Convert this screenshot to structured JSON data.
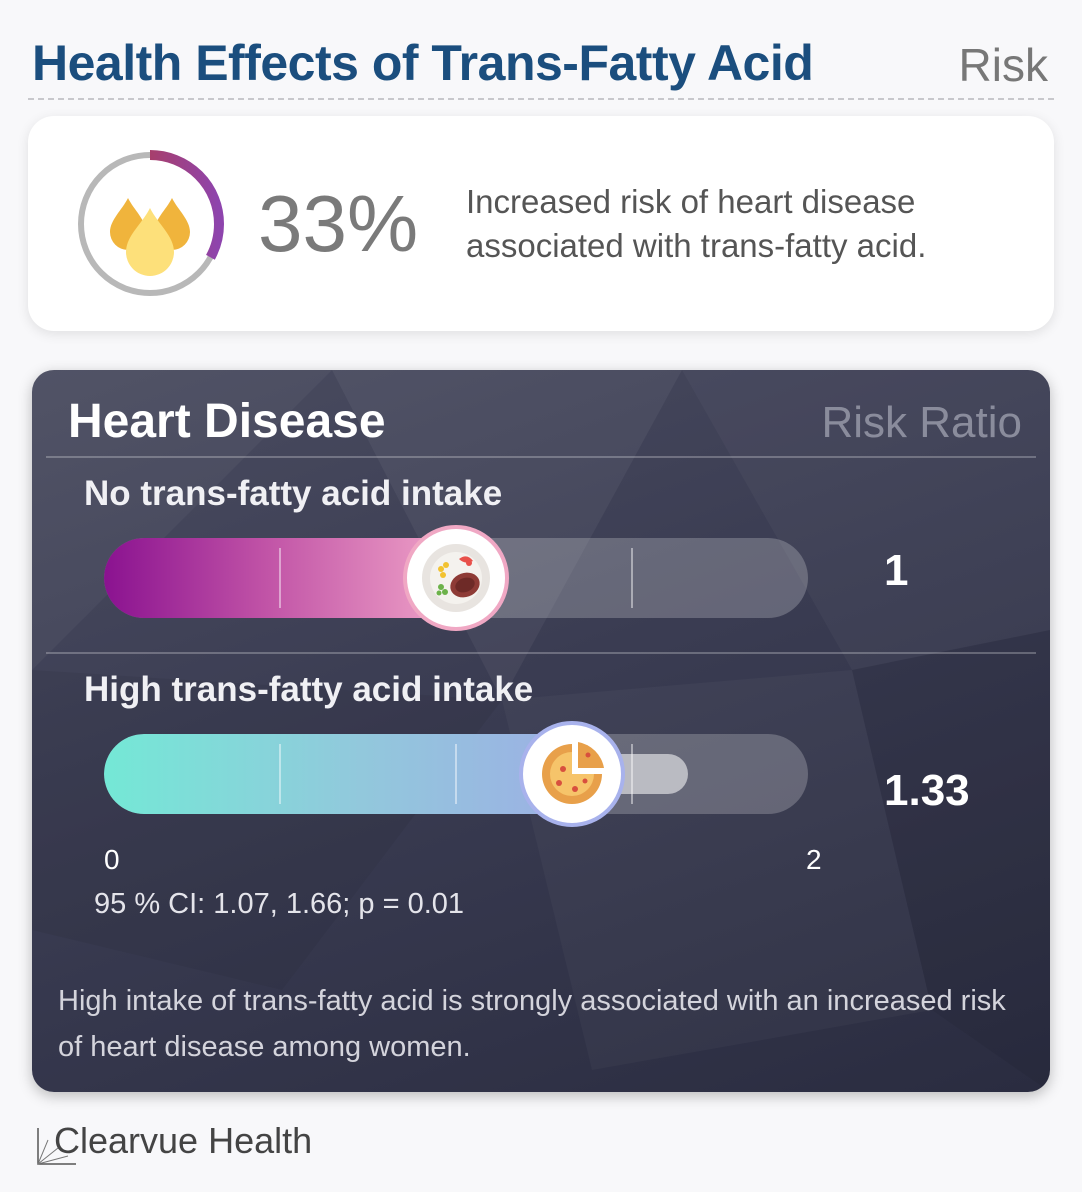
{
  "header": {
    "title": "Health Effects of Trans-Fatty Acid",
    "category": "Risk"
  },
  "stat": {
    "value": "33%",
    "fraction": 0.33,
    "description": "Increased risk of heart disease associated with trans-fatty acid.",
    "icon": "oil-drops-icon"
  },
  "panel": {
    "title": "Heart Disease",
    "metric": "Risk Ratio",
    "rows": [
      {
        "label": "No trans-fatty acid intake",
        "value": "1",
        "ratio": 1,
        "icon": "food-plate-icon"
      },
      {
        "label": "High trans-fatty acid intake",
        "value": "1.33",
        "ratio": 1.33,
        "ci_low": 1.07,
        "ci_high": 1.66,
        "icon": "pie-icon"
      }
    ],
    "axis": {
      "min": "0",
      "max": "2",
      "min_value": 0,
      "max_value": 2
    },
    "ci_text": "95 % CI: 1.07, 1.66; p = 0.01",
    "summary": "High intake of trans-fatty acid is strongly associated with an increased risk of heart disease among women."
  },
  "brand": {
    "name": "Clearvue Health",
    "icon": "clearvue-logo-icon"
  },
  "colors": {
    "title": "#1b4e7e",
    "ring_start": "#c0392b",
    "ring_end": "#8e44ad",
    "row1_fill": "#8a1290",
    "row2_fill": "#74e8d6"
  }
}
